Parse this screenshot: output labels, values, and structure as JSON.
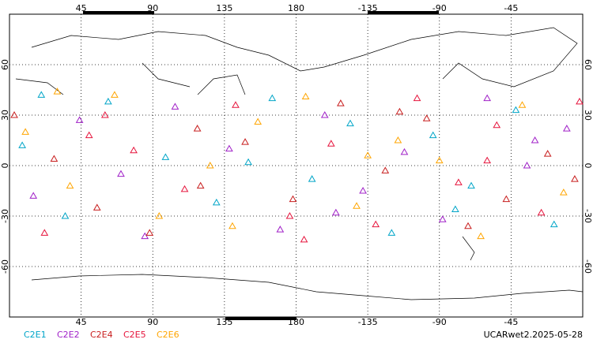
{
  "chart_data": {
    "type": "scatter",
    "xlim": [
      0,
      360
    ],
    "ylim": [
      -90,
      90
    ],
    "xticks": [
      45,
      90,
      135,
      180,
      {
        "value": 225,
        "label": "-135"
      },
      {
        "value": 270,
        "label": "-90"
      },
      {
        "value": 315,
        "label": "-45"
      }
    ],
    "yticks": [
      -60,
      -30,
      0,
      30,
      60
    ],
    "grid": true,
    "footer": "UCARwet2.2025-05-28",
    "series": [
      {
        "name": "C2E1",
        "color": "#00a5c8",
        "x": [
          8,
          35,
          62,
          98,
          130,
          165,
          190,
          214,
          240,
          266,
          290,
          318,
          342,
          20,
          150,
          280
        ],
        "y": [
          12,
          -30,
          38,
          5,
          -22,
          40,
          -8,
          25,
          -40,
          18,
          -12,
          33,
          -35,
          42,
          2,
          -26
        ]
      },
      {
        "name": "C2E2",
        "color": "#a020c8",
        "x": [
          15,
          44,
          70,
          104,
          138,
          170,
          198,
          222,
          248,
          272,
          300,
          325,
          350,
          85,
          205,
          330
        ],
        "y": [
          -18,
          27,
          -5,
          35,
          10,
          -38,
          30,
          -15,
          8,
          -32,
          40,
          0,
          22,
          -42,
          -28,
          15
        ]
      },
      {
        "name": "C2E4",
        "color": "#c81e1e",
        "x": [
          3,
          28,
          55,
          88,
          118,
          148,
          178,
          208,
          236,
          262,
          288,
          312,
          338,
          120,
          245,
          355
        ],
        "y": [
          30,
          4,
          -25,
          -40,
          22,
          14,
          -20,
          37,
          -3,
          28,
          -36,
          -20,
          7,
          -12,
          32,
          -8
        ]
      },
      {
        "name": "C2E5",
        "color": "#e6143c",
        "x": [
          22,
          50,
          78,
          110,
          142,
          176,
          202,
          230,
          256,
          282,
          306,
          334,
          358,
          60,
          185,
          300
        ],
        "y": [
          -40,
          18,
          9,
          -14,
          36,
          -30,
          13,
          -35,
          40,
          -10,
          24,
          -28,
          38,
          30,
          -44,
          3
        ]
      },
      {
        "name": "C2E6",
        "color": "#ffa500",
        "x": [
          10,
          38,
          66,
          94,
          126,
          156,
          186,
          218,
          244,
          270,
          296,
          322,
          348,
          140,
          225,
          30
        ],
        "y": [
          20,
          -12,
          42,
          -30,
          0,
          26,
          41,
          -24,
          15,
          3,
          -42,
          36,
          -16,
          -36,
          6,
          44
        ]
      }
    ]
  }
}
